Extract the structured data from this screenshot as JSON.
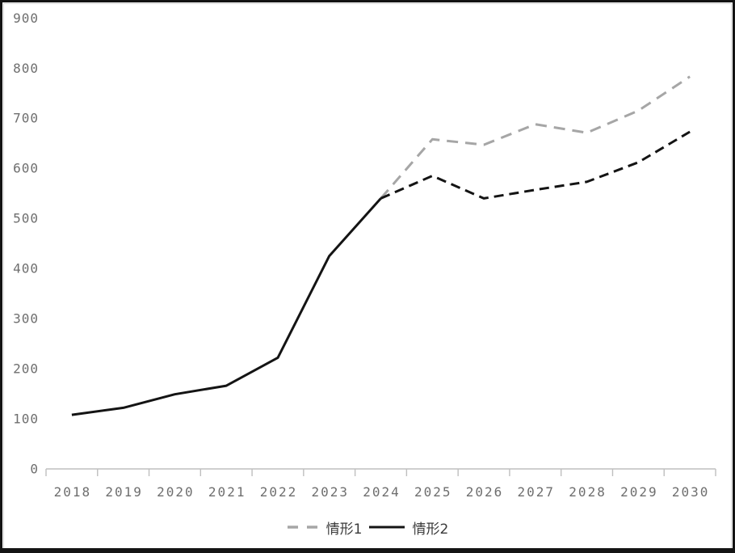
{
  "window": {
    "background": "#ffffff",
    "outer_border_color": "#141414",
    "inner_border_color": "#d6d6d6"
  },
  "chart_data": {
    "type": "line",
    "title": "",
    "xlabel": "",
    "ylabel": "",
    "categories": [
      "2018",
      "2019",
      "2020",
      "2021",
      "2022",
      "2023",
      "2024",
      "2025",
      "2026",
      "2027",
      "2028",
      "2029",
      "2030"
    ],
    "y_ticks": [
      0,
      100,
      200,
      300,
      400,
      500,
      600,
      700,
      800,
      900
    ],
    "ylim": [
      0,
      900
    ],
    "grid": false,
    "legend_position": "bottom-center",
    "axis_color": "#bfbfbf",
    "tick_label_color": "#6e6e6e",
    "series": [
      {
        "name": "情形1",
        "color": "#a6a6a6",
        "line_style": "dashed",
        "dash_pattern": "14 9",
        "stroke_width": 3,
        "values": [
          null,
          null,
          null,
          null,
          null,
          null,
          540,
          658,
          647,
          688,
          671,
          715,
          783
        ]
      },
      {
        "name": "情形2",
        "color": "#141414",
        "line_style": "solid-then-dashed",
        "dashed_from_index": 6,
        "dash_pattern": "12 7",
        "stroke_width": 3,
        "values": [
          108,
          122,
          149,
          166,
          222,
          425,
          540,
          585,
          540,
          557,
          573,
          612,
          673
        ]
      }
    ]
  }
}
